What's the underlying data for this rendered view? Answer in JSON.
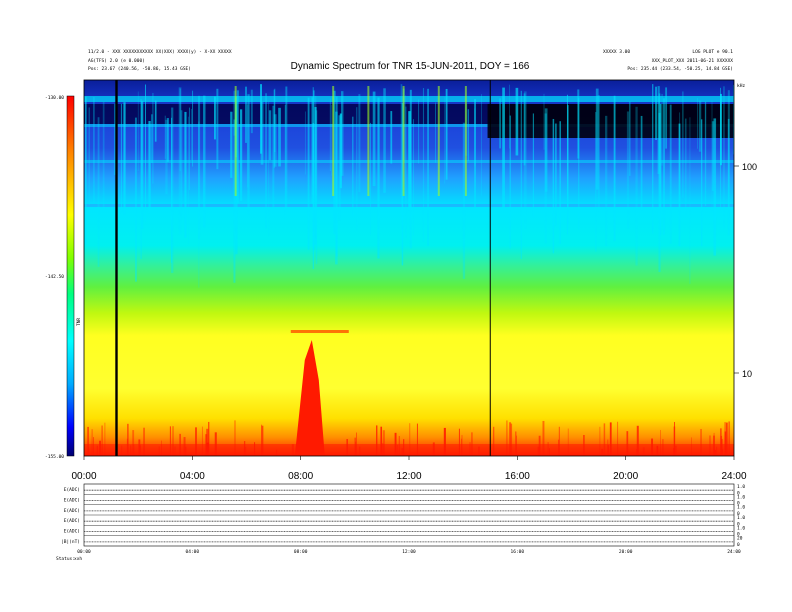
{
  "chart_data": {
    "type": "heatmap",
    "title": "Dynamic Spectrum for TNR 15-JUN-2011, DOY = 166",
    "header_left": {
      "line1": "11/2.0 - XXX XXXXXXXXXXX XX(XXX) XXXX(y) - X-XX XXXXX",
      "line2": "AG(TFS) 2.0 (e 0.000)",
      "line3": "Pos:    23.67 (240.56, -50.86, 15.43 GSE)"
    },
    "header_right": {
      "code": "XXXXX 3.00",
      "id": "LOG PLOT e 90.1",
      "line2": "XXX_PLOT_XXX  2011-06-21  XXXXXX",
      "line3": "Pos:   235.44 (233.54, -50.25, 14.84 GSE)"
    },
    "x_ticks": [
      "00:00",
      "04:00",
      "08:00",
      "12:00",
      "16:00",
      "20:00",
      "24:00"
    ],
    "x_range_hours": [
      0,
      24
    ],
    "right_axis": {
      "label": "kHz",
      "ticks": [
        "100",
        "10"
      ],
      "scale": "log"
    },
    "colorbar": {
      "unit": "TNR",
      "ticks": [
        "-130.00",
        "-142.50",
        "-155.00"
      ],
      "range": [
        -155.0,
        -130.0
      ],
      "colors": [
        "#000070",
        "#0000ff",
        "#00aaff",
        "#00ffff",
        "#00ff80",
        "#80ff00",
        "#ffff00",
        "#ff8000",
        "#ff0000"
      ]
    },
    "vertical_lines_hours": [
      1.2,
      15.0
    ],
    "bursts_hours": [
      5.6,
      8.3,
      9.2,
      10.5,
      11.8,
      13.1,
      14.1
    ],
    "band_colors": {
      "top_dark": "#00004a",
      "blue": "#1030d0",
      "cyan": "#00e6ff",
      "green": "#70f030",
      "yellow": "#ffff20",
      "orange": "#ffb000",
      "red": "#ff1a00"
    },
    "panels": [
      {
        "label": "E(ADC)",
        "ticks_right": [
          "1.0",
          "0"
        ]
      },
      {
        "label": "E(ADC)",
        "ticks_right": [
          "1.0",
          "0"
        ]
      },
      {
        "label": "E(ADC)",
        "ticks_right": [
          "1.0",
          "0"
        ]
      },
      {
        "label": "E(ADC)",
        "ticks_right": [
          "1.0",
          "0"
        ]
      },
      {
        "label": "E(ADC)",
        "ticks_right": [
          "1.0",
          "0"
        ]
      },
      {
        "label": "|B|(nT)",
        "ticks_right": [
          "20",
          "0"
        ]
      }
    ],
    "bottom_ticks": [
      "00:00",
      "04:00",
      "08:00",
      "12:00",
      "16:00",
      "20:00",
      "24:00"
    ],
    "status_label": "Status:",
    "status_value": "xxh",
    "grid": false
  }
}
